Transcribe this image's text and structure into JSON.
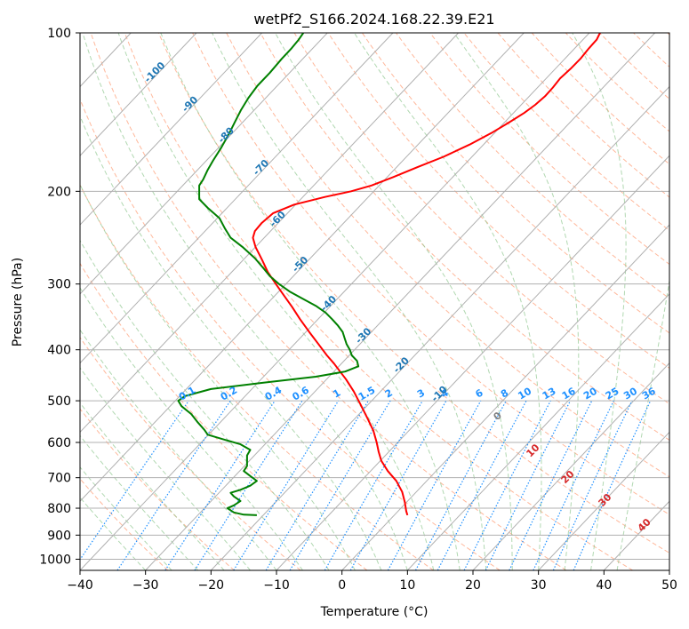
{
  "chart_data": {
    "type": "line",
    "subtype": "skew-t log-p",
    "title": "wetPf2_S166.2024.168.22.39.E21",
    "xlabel": "Temperature (°C)",
    "ylabel": "Pressure (hPa)",
    "xlim": [
      -40,
      50
    ],
    "ylim": [
      1050,
      100
    ],
    "y_scale": "log",
    "grid": true,
    "x_ticks": [
      "−40",
      "−30",
      "−20",
      "−10",
      "0",
      "10",
      "20",
      "30",
      "40",
      "50"
    ],
    "y_ticks": [
      "100",
      "200",
      "300",
      "400",
      "500",
      "600",
      "700",
      "800",
      "900",
      "1000"
    ],
    "isotherm_labels": [
      "-100",
      "-90",
      "-80",
      "-70",
      "-60",
      "-50",
      "-40",
      "-30",
      "-20",
      "-10"
    ],
    "mixing_ratio_labels": [
      "0.1",
      "0.2",
      "0.4",
      "0.6",
      "1",
      "1.5",
      "2",
      "3",
      "4",
      "6",
      "8",
      "10",
      "13",
      "16",
      "20",
      "25",
      "30",
      "36"
    ],
    "moist_adiabat_labels": [
      "0",
      "10",
      "20",
      "30",
      "40"
    ],
    "colors": {
      "temperature": "#ff0000",
      "dewpoint": "#008000",
      "isotherm_label": "#1f77b4",
      "mixing_ratio": "#1e90ff",
      "moist_label": "#d62728",
      "zero_label": "#808080",
      "dry_adiabat": "#ffa07a",
      "moist_adiabat": "#90c890",
      "grid": "#b0b0b0"
    },
    "series": [
      {
        "name": "",
        "variable": "temperature",
        "points": [
          [
            10,
            825
          ],
          [
            9.8,
            810
          ],
          [
            9.6,
            780
          ],
          [
            9.2,
            745
          ],
          [
            8.3,
            710
          ],
          [
            7,
            680
          ],
          [
            6,
            650
          ],
          [
            5.6,
            625
          ],
          [
            5.3,
            600
          ],
          [
            4.8,
            570
          ],
          [
            3.9,
            540
          ],
          [
            2.9,
            510
          ],
          [
            1.8,
            480
          ],
          [
            0.6,
            455
          ],
          [
            -0.3,
            440
          ],
          [
            -1.2,
            425
          ],
          [
            -2.3,
            410
          ],
          [
            -3.6,
            390
          ],
          [
            -5,
            370
          ],
          [
            -6.4,
            350
          ],
          [
            -7.6,
            332
          ],
          [
            -8.9,
            315
          ],
          [
            -10.1,
            300
          ],
          [
            -11.3,
            285
          ],
          [
            -12.2,
            270
          ],
          [
            -13.2,
            255
          ],
          [
            -13.6,
            245
          ],
          [
            -13.3,
            238
          ],
          [
            -12.3,
            230
          ],
          [
            -10.5,
            220
          ],
          [
            -7.3,
            212
          ],
          [
            -2.6,
            205
          ],
          [
            1.4,
            200
          ],
          [
            4.5,
            195
          ],
          [
            7.8,
            188
          ],
          [
            11.5,
            180
          ],
          [
            15.5,
            172
          ],
          [
            19.5,
            163
          ],
          [
            22.8,
            155
          ],
          [
            25.5,
            148
          ],
          [
            27.8,
            142
          ],
          [
            29.5,
            137
          ],
          [
            31,
            132
          ],
          [
            32.2,
            127
          ],
          [
            33.3,
            122
          ],
          [
            34.9,
            117
          ],
          [
            36.4,
            112
          ],
          [
            37.7,
            107
          ],
          [
            38.9,
            103
          ],
          [
            39.4,
            100
          ]
        ]
      },
      {
        "name": "",
        "variable": "dewpoint",
        "points": [
          [
            -13,
            825
          ],
          [
            -15,
            823
          ],
          [
            -16.5,
            815
          ],
          [
            -17.5,
            800
          ],
          [
            -16.5,
            790
          ],
          [
            -15.5,
            775
          ],
          [
            -16.5,
            760
          ],
          [
            -17,
            748
          ],
          [
            -15.5,
            738
          ],
          [
            -14,
            725
          ],
          [
            -13,
            710
          ],
          [
            -14,
            695
          ],
          [
            -15,
            680
          ],
          [
            -14.5,
            665
          ],
          [
            -14.5,
            650
          ],
          [
            -14.5,
            635
          ],
          [
            -14,
            620
          ],
          [
            -15.5,
            605
          ],
          [
            -18.5,
            590
          ],
          [
            -20.5,
            580
          ],
          [
            -21,
            568
          ],
          [
            -22,
            550
          ],
          [
            -23,
            530
          ],
          [
            -24.5,
            512
          ],
          [
            -25,
            500
          ],
          [
            -24,
            490
          ],
          [
            -20,
            475
          ],
          [
            -12,
            462
          ],
          [
            -4,
            450
          ],
          [
            0.5,
            440
          ],
          [
            2.5,
            430
          ],
          [
            2.3,
            420
          ],
          [
            1.5,
            410
          ],
          [
            1.2,
            400
          ],
          [
            0.7,
            390
          ],
          [
            0.4,
            380
          ],
          [
            0.1,
            370
          ],
          [
            -0.6,
            360
          ],
          [
            -1.5,
            350
          ],
          [
            -2.5,
            340
          ],
          [
            -4,
            330
          ],
          [
            -6,
            320
          ],
          [
            -8,
            310
          ],
          [
            -9.6,
            300
          ],
          [
            -11,
            290
          ],
          [
            -12,
            280
          ],
          [
            -13.3,
            268
          ],
          [
            -15.2,
            255
          ],
          [
            -17,
            245
          ],
          [
            -17.9,
            235
          ],
          [
            -18.7,
            225
          ],
          [
            -20.5,
            215
          ],
          [
            -21.8,
            207
          ],
          [
            -21.8,
            200
          ],
          [
            -21.8,
            195
          ],
          [
            -21.2,
            190
          ],
          [
            -20.5,
            182
          ],
          [
            -19.7,
            175
          ],
          [
            -18.4,
            165
          ],
          [
            -17.2,
            155
          ],
          [
            -16.4,
            148
          ],
          [
            -15.4,
            140
          ],
          [
            -14.3,
            133
          ],
          [
            -12.9,
            126
          ],
          [
            -11,
            119
          ],
          [
            -9.2,
            112
          ],
          [
            -7.7,
            107
          ],
          [
            -6.6,
            103
          ],
          [
            -5.9,
            100
          ]
        ]
      }
    ]
  }
}
